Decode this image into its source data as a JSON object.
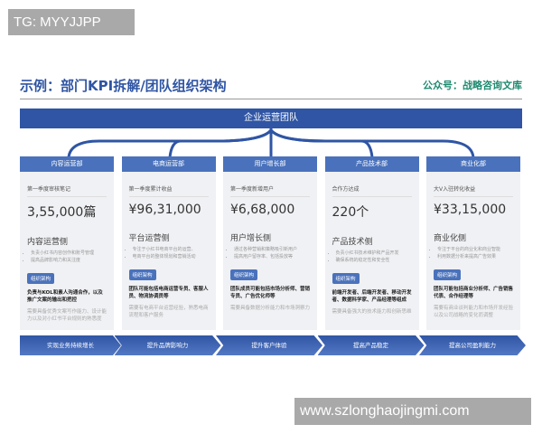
{
  "watermark_top": "TG: MYYJJPP",
  "title": "示例：部门KPI拆解/团队组织架构",
  "account": "公众号：战略咨询文库",
  "top_unit": "企业运营团队",
  "colors": {
    "primary": "#2f55a4",
    "header": "#4a72bc",
    "account": "#1f8a70"
  },
  "departments": [
    {
      "name": "内容运营部",
      "kpi_label": "第一季度审核笔记",
      "kpi_value": "3,55,000篇",
      "side": "内容运营侧",
      "bullets": [
        "负责小红书内容创作和账号管理",
        "提高品牌影响力和关注度"
      ],
      "tag": "组织架构",
      "team": "负责与KOL和素人沟通合作，以及推广文案的输出和把控",
      "skills": "需要具备优秀文案写作能力、设计能力以及对小红书平台规则的熟悉度",
      "goal": "实现业务持续增长"
    },
    {
      "name": "电商运营部",
      "kpi_label": "第一季度累计收益",
      "kpi_value": "¥96,31,000",
      "side": "平台运营侧",
      "bullets": [
        "专注于小红书电商平台的运营。",
        "电商平台的整体规划和营销活动"
      ],
      "tag": "组织架构",
      "team": "团队可能包括电商运营专员、客服人员、物流协调员等",
      "skills": "需要有电商平台运营经验，熟悉电商流程和客户服务",
      "goal": "提升品牌影响力"
    },
    {
      "name": "用户增长部",
      "kpi_label": "第一季度新增用户",
      "kpi_value": "¥6,68,000",
      "side": "用户增长侧",
      "bullets": [
        "通过各种营销和策略吸引新用户",
        "提高用户留存率、包括投放等"
      ],
      "tag": "组织架构",
      "team": "团队成员可能包括市场分析师、营销专员、广告优化师等",
      "skills": "需要具备数据分析能力和市场洞察力",
      "goal": "提升客户体验"
    },
    {
      "name": "产品技术部",
      "kpi_label": "合作方达成",
      "kpi_value": "220个",
      "side": "产品技术侧",
      "bullets": [
        "负责小红书技术维护和产品开发",
        "确保系统的稳定性和安全性"
      ],
      "tag": "组织架构",
      "team": "前端开发者、后端开发者、移动开发者、数据科学家、产品经理等组成",
      "skills": "需要具备强大的技术能力和创新思维",
      "goal": "提高产品稳定"
    },
    {
      "name": "商业化部",
      "kpi_label": "大V入驻转化收益",
      "kpi_value": "¥33,15,000",
      "side": "商业化侧",
      "bullets": [
        "专注于平台的商业化和商业智能",
        "利用数据分析来提高广告效果"
      ],
      "tag": "组织架构",
      "team": "团队可能包括商业分析师、广告销售代表、合作经理等",
      "skills": "需要有商业谈判能力和市场开发经验以及公司战略的变化而调整",
      "goal": "提高公司盈利能力"
    }
  ],
  "watermark_bottom": "www.szlonghaojingmi.com"
}
